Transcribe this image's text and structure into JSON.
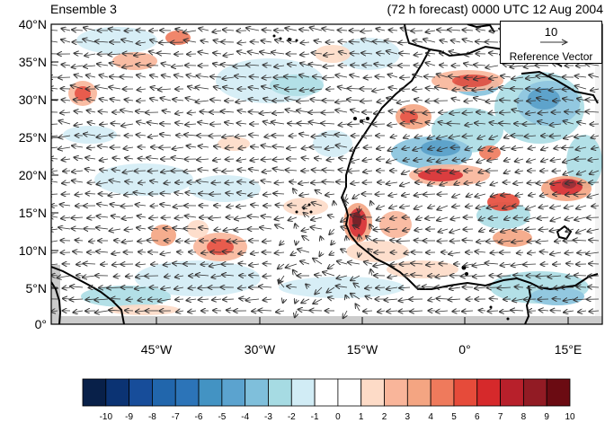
{
  "title": {
    "left": "Ensemble 3",
    "right": "(72 h forecast) 0000 UTC 12 Aug 2004"
  },
  "axes": {
    "lat_ticks": [
      "40°N",
      "35°N",
      "30°N",
      "25°N",
      "20°N",
      "15°N",
      "10°N",
      "5°N",
      "0°"
    ],
    "lon_ticks": [
      "45°W",
      "30°W",
      "15°W",
      "0°",
      "15°E"
    ]
  },
  "reference_vector": {
    "magnitude": "10",
    "label": "Reference Vector"
  },
  "colorbar": {
    "labels": [
      "-10",
      "-9",
      "-8",
      "-7",
      "-6",
      "-5",
      "-4",
      "-3",
      "-2",
      "-1",
      "0",
      "1",
      "2",
      "3",
      "4",
      "5",
      "6",
      "7",
      "8",
      "9",
      "10"
    ],
    "colors": [
      "#082049",
      "#0b3373",
      "#174d9a",
      "#2166ac",
      "#2c74b8",
      "#4393c3",
      "#5ba3cf",
      "#7fbfdb",
      "#a6dbe3",
      "#d1ecf5",
      "#ffffff",
      "#ffffff",
      "#fddbc7",
      "#f9b59a",
      "#f4a582",
      "#ef7a5c",
      "#e64b3a",
      "#d6292b",
      "#b8202b",
      "#921b24",
      "#6b0b12"
    ]
  },
  "map": {
    "lat_range": [
      0,
      40
    ],
    "lon_range": [
      -60,
      20
    ],
    "colors": {
      "land_line": "#000000",
      "missing": "#cccccc",
      "positive": "#e64b3a",
      "negative": "#4393c3"
    }
  }
}
